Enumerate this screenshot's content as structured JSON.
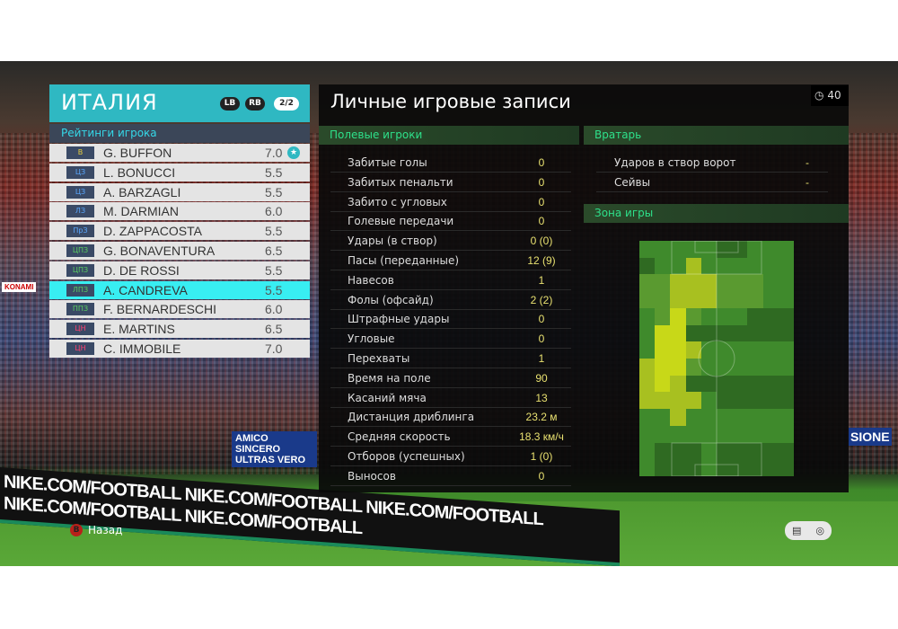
{
  "team": {
    "name": "ИТАЛИЯ",
    "lb": "LB",
    "rb": "RB",
    "page": "2/2"
  },
  "ratings_header": "Рейтинги игрока",
  "players": [
    {
      "pos": "В",
      "name": "G. BUFFON",
      "rating": "7.0",
      "pos_color": "#e8d040",
      "star": true
    },
    {
      "pos": "ЦЗ",
      "name": "L. BONUCCI",
      "rating": "5.5",
      "pos_color": "#5aa8ff"
    },
    {
      "pos": "ЦЗ",
      "name": "A. BARZAGLI",
      "rating": "5.5",
      "pos_color": "#5aa8ff"
    },
    {
      "pos": "ЛЗ",
      "name": "M. DARMIAN",
      "rating": "6.0",
      "pos_color": "#5aa8ff"
    },
    {
      "pos": "ПрЗ",
      "name": "D. ZAPPACOSTA",
      "rating": "5.5",
      "pos_color": "#5aa8ff"
    },
    {
      "pos": "ЦПЗ",
      "name": "G. BONAVENTURA",
      "rating": "6.5",
      "pos_color": "#5ad060"
    },
    {
      "pos": "ЦПЗ",
      "name": "D. DE ROSSI",
      "rating": "5.5",
      "pos_color": "#5ad060"
    },
    {
      "pos": "ЛПЗ",
      "name": "A. CANDREVA",
      "rating": "5.5",
      "pos_color": "#5ad060",
      "selected": true
    },
    {
      "pos": "ППЗ",
      "name": "F. BERNARDESCHI",
      "rating": "6.0",
      "pos_color": "#5ad060"
    },
    {
      "pos": "ЦН",
      "name": "E. MARTINS",
      "rating": "6.5",
      "pos_color": "#ff4070"
    },
    {
      "pos": "ЦН",
      "name": "C. IMMOBILE",
      "rating": "7.0",
      "pos_color": "#ff4070"
    }
  ],
  "title": "Личные игровые записи",
  "timer": "40",
  "field_players": {
    "header": "Полевые игроки",
    "stats": [
      {
        "label": "Забитые голы",
        "value": "0"
      },
      {
        "label": "Забитых пенальти",
        "value": "0"
      },
      {
        "label": "Забито с угловых",
        "value": "0"
      },
      {
        "label": "Голевые передачи",
        "value": "0"
      },
      {
        "label": "Удары (в створ)",
        "value": "0 (0)"
      },
      {
        "label": "Пасы (переданные)",
        "value": "12 (9)"
      },
      {
        "label": "Навесов",
        "value": "1"
      },
      {
        "label": "Фолы (офсайд)",
        "value": "2 (2)"
      },
      {
        "label": "Штрафные удары",
        "value": "0"
      },
      {
        "label": "Угловые",
        "value": "0"
      },
      {
        "label": "Перехваты",
        "value": "1"
      },
      {
        "label": "Время на поле",
        "value": "90"
      },
      {
        "label": "Касаний мяча",
        "value": "13"
      },
      {
        "label": "Дистанция дриблинга",
        "value": "23.2 м"
      },
      {
        "label": "Средняя скорость",
        "value": "18.3 км/ч"
      },
      {
        "label": "Отборов (успешных)",
        "value": "1 (0)"
      },
      {
        "label": "Выносов",
        "value": "0"
      }
    ]
  },
  "goalkeeper": {
    "header": "Вратарь",
    "stats": [
      {
        "label": "Ударов в створ ворот",
        "value": "-"
      },
      {
        "label": "Сейвы",
        "value": "-"
      }
    ]
  },
  "zone": {
    "header": "Зона игры",
    "heatmap_levels": [
      [
        1,
        1,
        1,
        1,
        1,
        0,
        0,
        1,
        1,
        1
      ],
      [
        0,
        1,
        1,
        3,
        1,
        1,
        1,
        1,
        1,
        1
      ],
      [
        2,
        2,
        3,
        3,
        3,
        2,
        2,
        2,
        1,
        1
      ],
      [
        2,
        2,
        3,
        3,
        3,
        2,
        2,
        2,
        1,
        1
      ],
      [
        1,
        2,
        4,
        2,
        1,
        1,
        1,
        0,
        0,
        0
      ],
      [
        1,
        4,
        4,
        0,
        0,
        0,
        0,
        0,
        0,
        0
      ],
      [
        1,
        4,
        4,
        3,
        1,
        1,
        1,
        1,
        1,
        1
      ],
      [
        3,
        4,
        4,
        2,
        1,
        1,
        1,
        1,
        1,
        1
      ],
      [
        3,
        4,
        3,
        0,
        0,
        0,
        0,
        0,
        0,
        0
      ],
      [
        3,
        3,
        3,
        3,
        1,
        0,
        0,
        0,
        0,
        0
      ],
      [
        1,
        1,
        3,
        1,
        1,
        1,
        1,
        1,
        1,
        1
      ],
      [
        1,
        1,
        1,
        1,
        1,
        1,
        1,
        1,
        1,
        1
      ],
      [
        1,
        0,
        0,
        0,
        1,
        0,
        0,
        0,
        0,
        0
      ],
      [
        1,
        0,
        0,
        0,
        1,
        0,
        0,
        0,
        0,
        0
      ]
    ],
    "level_colors": [
      "#2f6a22",
      "#3f8a2c",
      "#5a9a30",
      "#a8c020",
      "#c8d818"
    ]
  },
  "footer": {
    "back_button": "B",
    "back_label": "Назад"
  },
  "background": {
    "ad_board": "NIKE.COM/FOOTBALL   NIKE.COM/FOOTBALL   NIKE.COM/FOOTBALL   NIKE.COM/FOOTBALL   NIKE.COM/FOOTBALL",
    "banner1": "AMICO SINCERO ULTRAS VERO",
    "banner2": "KONAMI",
    "banner3": "SIONE"
  }
}
